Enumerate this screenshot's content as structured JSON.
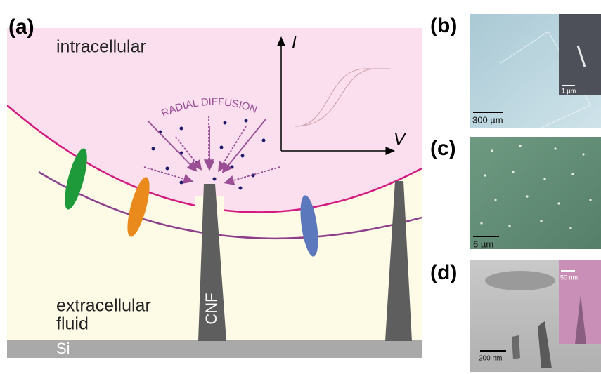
{
  "panels": {
    "a": {
      "label": "(a)",
      "intracellular": "intracellular",
      "diffusion": "RADIAL DIFFUSION",
      "current_axis": "I",
      "voltage_axis": "V",
      "extracellular": [
        "extracellular",
        "fluid"
      ],
      "electrode": "CNF",
      "substrate": "Si"
    },
    "b": {
      "label": "(b)",
      "scale": "300 µm",
      "inset_scale": "1 µm"
    },
    "c": {
      "label": "(c)",
      "scale": "6 µm"
    },
    "d": {
      "label": "(d)",
      "scale": "200 nm",
      "inset_scale": "50 nm"
    }
  }
}
